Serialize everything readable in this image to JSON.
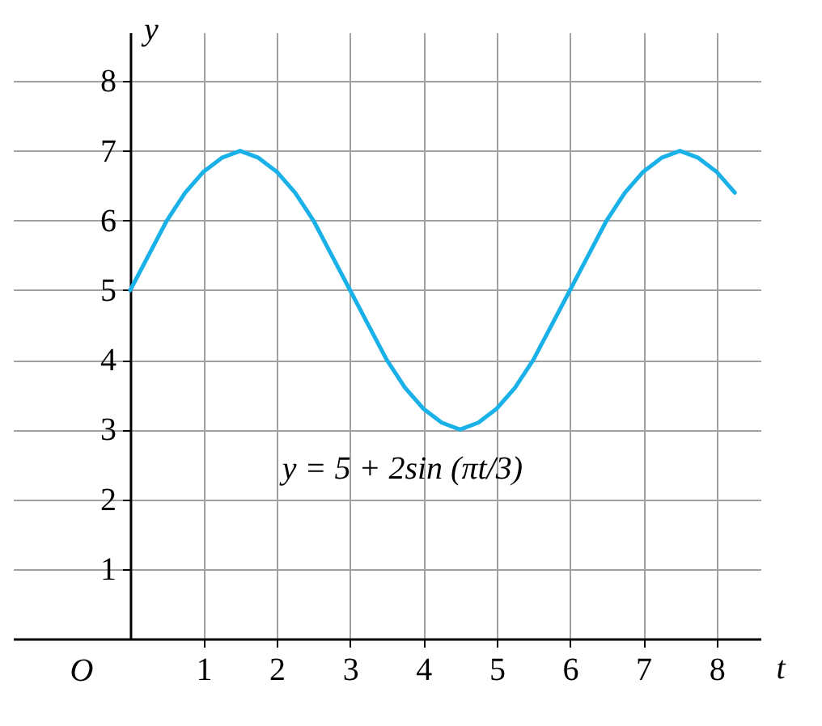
{
  "chart_data": {
    "type": "line",
    "xlabel": "t",
    "ylabel": "y",
    "x": [
      0,
      0.25,
      0.5,
      0.75,
      1,
      1.25,
      1.5,
      1.75,
      2,
      2.25,
      2.5,
      2.75,
      3,
      3.25,
      3.5,
      3.75,
      4,
      4.25,
      4.5,
      4.75,
      5,
      5.25,
      5.5,
      5.75,
      6,
      6.25,
      6.5,
      6.75,
      7,
      7.25,
      7.5,
      7.75,
      8,
      8.25
    ],
    "series": [
      {
        "color": "#1ab0e8",
        "values": [
          5,
          5.5,
          6,
          6.4,
          6.7,
          6.9,
          7,
          6.9,
          6.7,
          6.4,
          6,
          5.5,
          5,
          4.5,
          4,
          3.6,
          3.3,
          3.1,
          3,
          3.1,
          3.3,
          3.6,
          4,
          4.5,
          5,
          5.5,
          6,
          6.4,
          6.7,
          6.9,
          7,
          6.9,
          6.7,
          6.4
        ]
      }
    ],
    "xlim": [
      -1.6,
      8.6
    ],
    "ylim": [
      0,
      8.7
    ],
    "xticks": [
      1,
      2,
      3,
      4,
      5,
      6,
      7,
      8
    ],
    "yticks": [
      1,
      2,
      3,
      4,
      5,
      6,
      7,
      8
    ],
    "grid": true,
    "marker": "none",
    "line_style": "solid",
    "annotations": [
      "O",
      "y = 5 + 2sin (πt/3)"
    ]
  }
}
